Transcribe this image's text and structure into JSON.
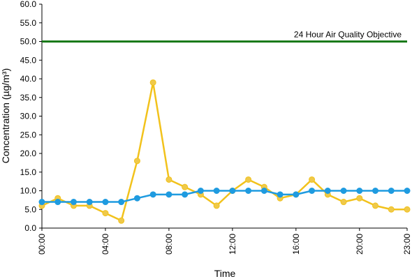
{
  "chart_data": {
    "type": "line",
    "xlabel": "Time",
    "ylabel": "Concentration (µg/m³)",
    "ylim": [
      0,
      60
    ],
    "yticks": [
      "0.0",
      "5.0",
      "10.0",
      "15.0",
      "20.0",
      "25.0",
      "30.0",
      "35.0",
      "40.0",
      "45.0",
      "50.0",
      "55.0",
      "60.0"
    ],
    "xticks": [
      "00:00",
      "04:00",
      "08:00",
      "12:00",
      "16:00",
      "20:00",
      "23:00"
    ],
    "x_hours": [
      0,
      1,
      2,
      3,
      4,
      5,
      6,
      7,
      8,
      9,
      10,
      11,
      12,
      13,
      14,
      15,
      16,
      17,
      18,
      19,
      20,
      21,
      22,
      23
    ],
    "grid": false,
    "series": [
      {
        "color": "#f2c21b",
        "marker_fill": "#efc94a",
        "values": [
          6,
          8,
          6,
          6,
          4,
          2,
          18,
          39,
          13,
          11,
          9,
          6,
          10,
          13,
          11,
          8,
          9,
          13,
          9,
          7,
          8,
          6,
          5,
          5
        ]
      },
      {
        "color": "#1f9be0",
        "marker_fill": "#1f9be0",
        "values": [
          7,
          7,
          7,
          7,
          7,
          7,
          8,
          9,
          9,
          9,
          10,
          10,
          10,
          10,
          10,
          9,
          9,
          10,
          10,
          10,
          10,
          10,
          10,
          10
        ]
      }
    ],
    "reference_line": {
      "value": 50,
      "label": "24 Hour Air Quality Objective",
      "color": "#1a7a1a"
    }
  }
}
